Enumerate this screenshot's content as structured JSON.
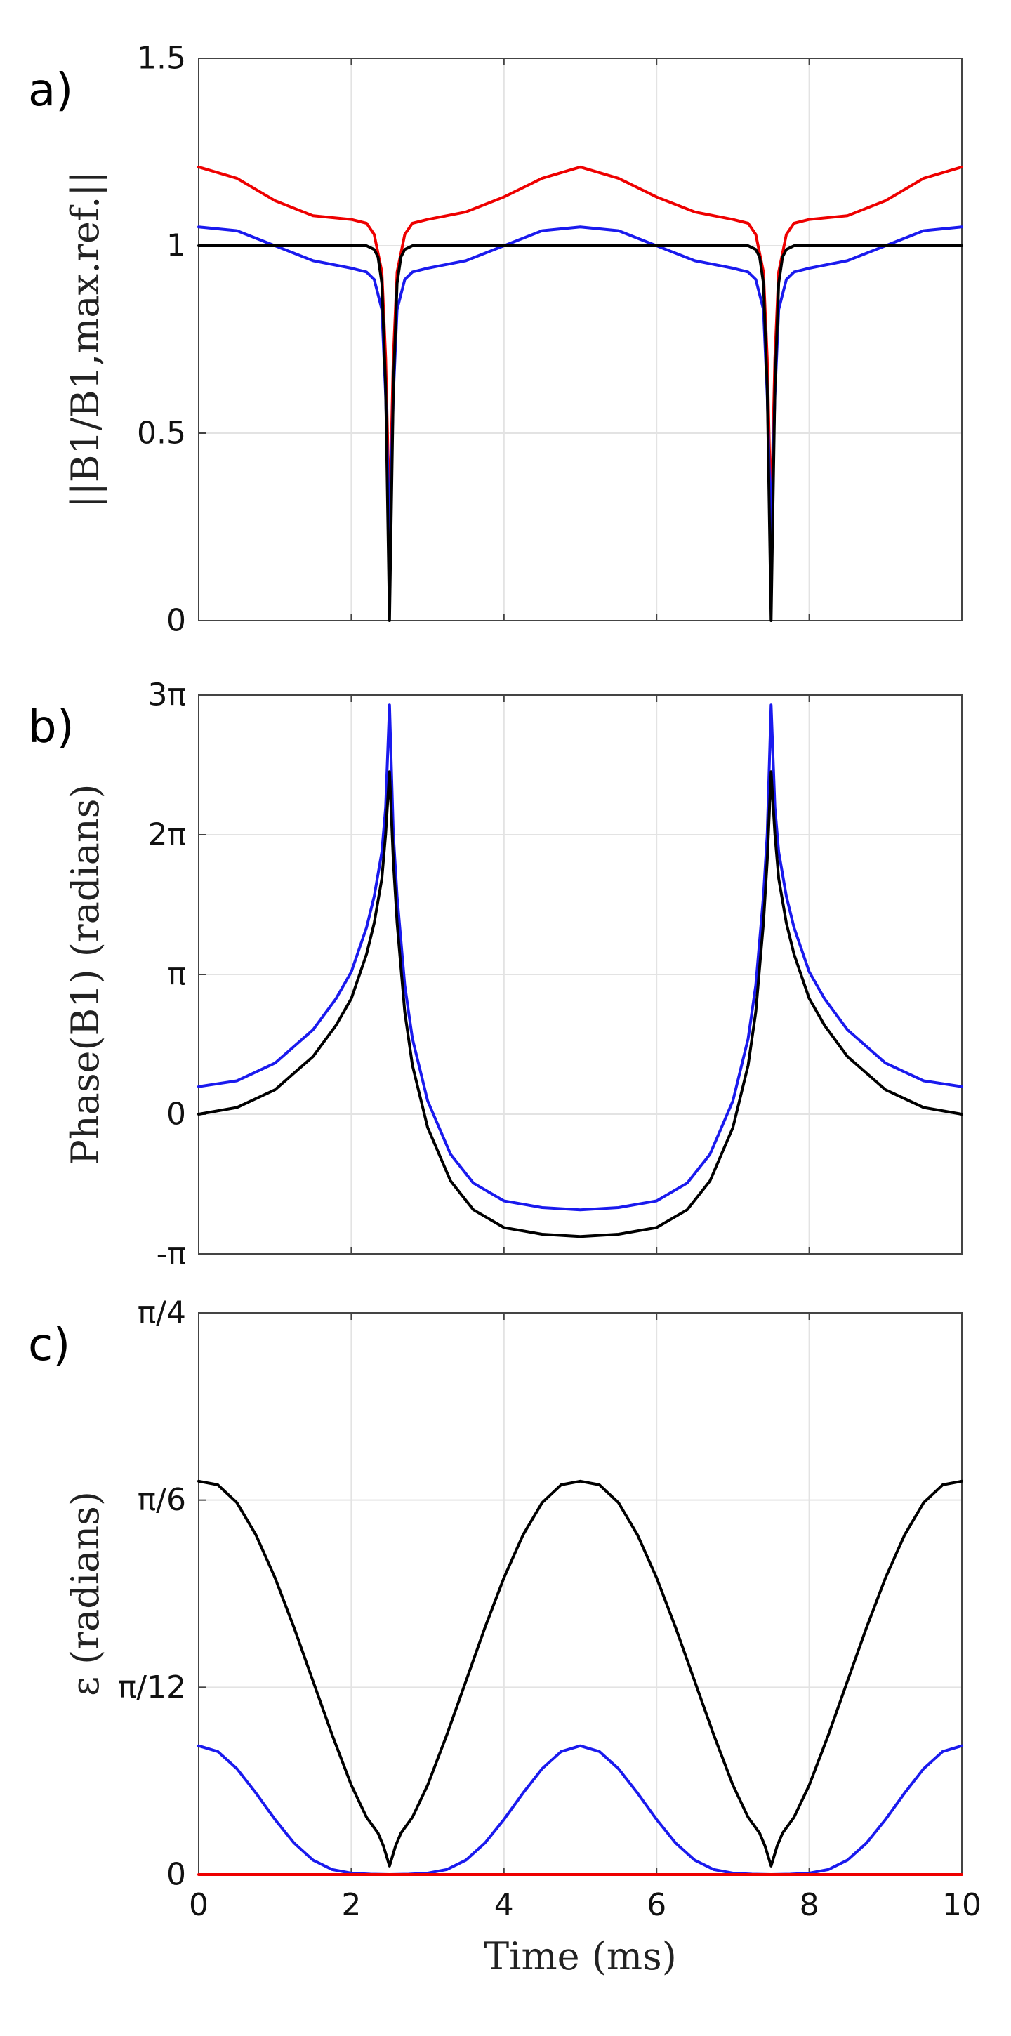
{
  "chart_data": [
    {
      "type": "line",
      "panel_label": "a)",
      "ylabel": "||B1/B1,max.ref.||",
      "xlabel": "",
      "xlim": [
        0,
        10
      ],
      "ylim": [
        0,
        1.5
      ],
      "xticks": [
        0,
        2,
        4,
        6,
        8,
        10
      ],
      "yticks": [
        0,
        0.5,
        1,
        1.5
      ],
      "ytick_labels": [
        "0",
        "0.5",
        "1",
        "1.5"
      ],
      "show_xtick_labels": false,
      "grid": true,
      "series": [
        {
          "color": "#ee0000",
          "x": [
            0,
            0.5,
            1,
            1.5,
            2,
            2.2,
            2.3,
            2.4,
            2.45,
            2.5,
            2.55,
            2.6,
            2.7,
            2.8,
            3,
            3.5,
            4,
            4.5,
            5,
            5.5,
            6,
            6.5,
            7,
            7.2,
            7.3,
            7.4,
            7.45,
            7.5,
            7.55,
            7.6,
            7.7,
            7.8,
            8,
            8.5,
            9,
            9.5,
            10
          ],
          "y": [
            1.21,
            1.18,
            1.12,
            1.08,
            1.07,
            1.06,
            1.03,
            0.93,
            0.7,
            0.27,
            0.7,
            0.93,
            1.03,
            1.06,
            1.07,
            1.09,
            1.13,
            1.18,
            1.21,
            1.18,
            1.13,
            1.09,
            1.07,
            1.06,
            1.03,
            0.93,
            0.7,
            0.27,
            0.7,
            0.93,
            1.03,
            1.06,
            1.07,
            1.08,
            1.12,
            1.18,
            1.21
          ]
        },
        {
          "color": "#1a1aee",
          "x": [
            0,
            0.5,
            1,
            1.5,
            2,
            2.2,
            2.3,
            2.4,
            2.45,
            2.5,
            2.55,
            2.6,
            2.7,
            2.8,
            3,
            3.5,
            4,
            4.5,
            5,
            5.5,
            6,
            6.5,
            7,
            7.2,
            7.3,
            7.4,
            7.45,
            7.5,
            7.55,
            7.6,
            7.7,
            7.8,
            8,
            8.5,
            9,
            9.5,
            10
          ],
          "y": [
            1.05,
            1.04,
            1.0,
            0.96,
            0.94,
            0.93,
            0.91,
            0.83,
            0.6,
            0.23,
            0.6,
            0.83,
            0.91,
            0.93,
            0.94,
            0.96,
            1.0,
            1.04,
            1.05,
            1.04,
            1.0,
            0.96,
            0.94,
            0.93,
            0.91,
            0.83,
            0.6,
            0.23,
            0.6,
            0.83,
            0.91,
            0.93,
            0.94,
            0.96,
            1.0,
            1.04,
            1.05
          ]
        },
        {
          "color": "#000000",
          "x": [
            0,
            0.5,
            1,
            1.5,
            2,
            2.2,
            2.3,
            2.35,
            2.4,
            2.45,
            2.5,
            2.55,
            2.6,
            2.65,
            2.7,
            2.8,
            3,
            4,
            5,
            6,
            7,
            7.2,
            7.3,
            7.35,
            7.4,
            7.45,
            7.5,
            7.55,
            7.6,
            7.65,
            7.7,
            7.8,
            8,
            9,
            10
          ],
          "y": [
            1,
            1,
            1,
            1,
            1,
            1,
            0.99,
            0.97,
            0.9,
            0.62,
            0,
            0.62,
            0.9,
            0.97,
            0.99,
            1,
            1,
            1,
            1,
            1,
            1,
            1,
            0.99,
            0.97,
            0.9,
            0.62,
            0,
            0.62,
            0.9,
            0.97,
            0.99,
            1,
            1,
            1,
            1
          ]
        }
      ]
    },
    {
      "type": "line",
      "panel_label": "b)",
      "ylabel": "Phase(B1) (radians)",
      "xlabel": "",
      "xlim": [
        0,
        10
      ],
      "ylim": [
        -3.1416,
        9.4248
      ],
      "xticks": [
        0,
        2,
        4,
        6,
        8,
        10
      ],
      "yticks": [
        -3.1416,
        0,
        3.1416,
        6.2832,
        9.4248
      ],
      "ytick_labels": [
        "-π",
        "0",
        "π",
        "2π",
        "3π"
      ],
      "show_xtick_labels": false,
      "grid": true,
      "series": [
        {
          "color": "#1a1aee",
          "x": [
            0,
            0.5,
            1,
            1.5,
            1.8,
            2.0,
            2.2,
            2.3,
            2.4,
            2.45,
            2.5,
            2.55,
            2.6,
            2.7,
            2.8,
            3.0,
            3.3,
            3.6,
            4.0,
            4.5,
            5.0,
            5.5,
            6.0,
            6.4,
            6.7,
            7.0,
            7.2,
            7.3,
            7.4,
            7.45,
            7.5,
            7.55,
            7.6,
            7.7,
            7.8,
            8.0,
            8.2,
            8.5,
            9.0,
            9.5,
            10
          ],
          "y": [
            0.62,
            0.75,
            1.15,
            1.9,
            2.6,
            3.2,
            4.2,
            4.9,
            5.9,
            6.9,
            9.2,
            6.3,
            4.9,
            2.9,
            1.7,
            0.3,
            -0.9,
            -1.55,
            -1.95,
            -2.1,
            -2.15,
            -2.1,
            -1.95,
            -1.55,
            -0.9,
            0.3,
            1.7,
            2.9,
            4.9,
            6.3,
            9.2,
            6.9,
            5.9,
            4.9,
            4.2,
            3.2,
            2.6,
            1.9,
            1.15,
            0.75,
            0.62
          ]
        },
        {
          "color": "#000000",
          "x": [
            0,
            0.5,
            1,
            1.5,
            1.8,
            2.0,
            2.2,
            2.3,
            2.4,
            2.45,
            2.5,
            2.55,
            2.6,
            2.7,
            2.8,
            3.0,
            3.3,
            3.6,
            4.0,
            4.5,
            5.0,
            5.5,
            6.0,
            6.4,
            6.7,
            7.0,
            7.2,
            7.3,
            7.4,
            7.45,
            7.5,
            7.55,
            7.6,
            7.7,
            7.8,
            8.0,
            8.2,
            8.5,
            9.0,
            9.5,
            10
          ],
          "y": [
            0,
            0.15,
            0.55,
            1.3,
            2.0,
            2.6,
            3.6,
            4.3,
            5.3,
            6.3,
            7.7,
            5.7,
            4.3,
            2.3,
            1.1,
            -0.3,
            -1.5,
            -2.15,
            -2.55,
            -2.7,
            -2.75,
            -2.7,
            -2.55,
            -2.15,
            -1.5,
            -0.3,
            1.1,
            2.3,
            4.3,
            5.7,
            7.7,
            6.3,
            5.3,
            4.3,
            3.6,
            2.6,
            2.0,
            1.3,
            0.55,
            0.15,
            0
          ]
        }
      ]
    },
    {
      "type": "line",
      "panel_label": "c)",
      "ylabel": "ε (radians)",
      "xlabel": "Time (ms)",
      "xlim": [
        0,
        10
      ],
      "ylim": [
        0,
        0.7854
      ],
      "xticks": [
        0,
        2,
        4,
        6,
        8,
        10
      ],
      "xtick_labels": [
        "0",
        "2",
        "4",
        "6",
        "8",
        "10"
      ],
      "yticks": [
        0,
        0.2618,
        0.5236,
        0.7854
      ],
      "ytick_labels": [
        "0",
        "π/12",
        "π/6",
        "π/4"
      ],
      "show_xtick_labels": true,
      "grid": true,
      "series": [
        {
          "color": "#000000",
          "x": [
            0,
            0.25,
            0.5,
            0.75,
            1.0,
            1.25,
            1.5,
            1.75,
            2.0,
            2.2,
            2.35,
            2.42,
            2.5,
            2.58,
            2.65,
            2.8,
            3.0,
            3.25,
            3.5,
            3.75,
            4.0,
            4.25,
            4.5,
            4.75,
            5.0,
            5.25,
            5.5,
            5.75,
            6.0,
            6.25,
            6.5,
            6.75,
            7.0,
            7.2,
            7.35,
            7.42,
            7.5,
            7.58,
            7.65,
            7.8,
            8.0,
            8.25,
            8.5,
            8.75,
            9.0,
            9.25,
            9.5,
            9.75,
            10
          ],
          "y": [
            0.55,
            0.545,
            0.52,
            0.475,
            0.415,
            0.345,
            0.27,
            0.195,
            0.125,
            0.08,
            0.058,
            0.04,
            0.012,
            0.04,
            0.058,
            0.08,
            0.125,
            0.195,
            0.27,
            0.345,
            0.415,
            0.475,
            0.52,
            0.545,
            0.55,
            0.545,
            0.52,
            0.475,
            0.415,
            0.345,
            0.27,
            0.195,
            0.125,
            0.08,
            0.058,
            0.04,
            0.012,
            0.04,
            0.058,
            0.08,
            0.125,
            0.195,
            0.27,
            0.345,
            0.415,
            0.475,
            0.52,
            0.545,
            0.55
          ]
        },
        {
          "color": "#1a1aee",
          "x": [
            0,
            0.25,
            0.5,
            0.75,
            1.0,
            1.25,
            1.5,
            1.75,
            2.0,
            2.25,
            2.5,
            2.75,
            3.0,
            3.25,
            3.5,
            3.75,
            4.0,
            4.25,
            4.5,
            4.75,
            5.0,
            5.25,
            5.5,
            5.75,
            6.0,
            6.25,
            6.5,
            6.75,
            7.0,
            7.25,
            7.5,
            7.75,
            8.0,
            8.25,
            8.5,
            8.75,
            9.0,
            9.25,
            9.5,
            9.75,
            10
          ],
          "y": [
            0.18,
            0.172,
            0.148,
            0.114,
            0.077,
            0.044,
            0.02,
            0.007,
            0.002,
            0.0005,
            0,
            0.0005,
            0.002,
            0.007,
            0.02,
            0.044,
            0.077,
            0.114,
            0.148,
            0.172,
            0.18,
            0.172,
            0.148,
            0.114,
            0.077,
            0.044,
            0.02,
            0.007,
            0.002,
            0.0005,
            0,
            0.0005,
            0.002,
            0.007,
            0.02,
            0.044,
            0.077,
            0.114,
            0.148,
            0.172,
            0.18
          ]
        },
        {
          "color": "#ee0000",
          "x": [
            0,
            10
          ],
          "y": [
            0,
            0
          ]
        }
      ]
    }
  ]
}
